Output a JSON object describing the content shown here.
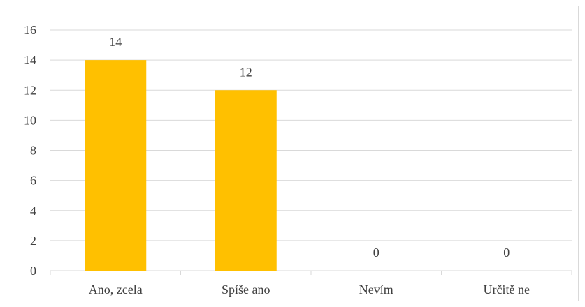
{
  "chart_data": {
    "type": "bar",
    "categories": [
      "Ano, zcela",
      "Spíše ano",
      "Nevím",
      "Určitě ne"
    ],
    "values": [
      14,
      12,
      0,
      0
    ],
    "data_labels": [
      "14",
      "12",
      "0",
      "0"
    ],
    "title": "",
    "xlabel": "",
    "ylabel": "",
    "ylim": [
      0,
      16
    ],
    "yticks": [
      0,
      2,
      4,
      6,
      8,
      10,
      12,
      14,
      16
    ],
    "grid": true,
    "legend": "none",
    "bar_color": "#FFC000",
    "grid_color": "#d9d9d9",
    "text_color": "#404040"
  }
}
